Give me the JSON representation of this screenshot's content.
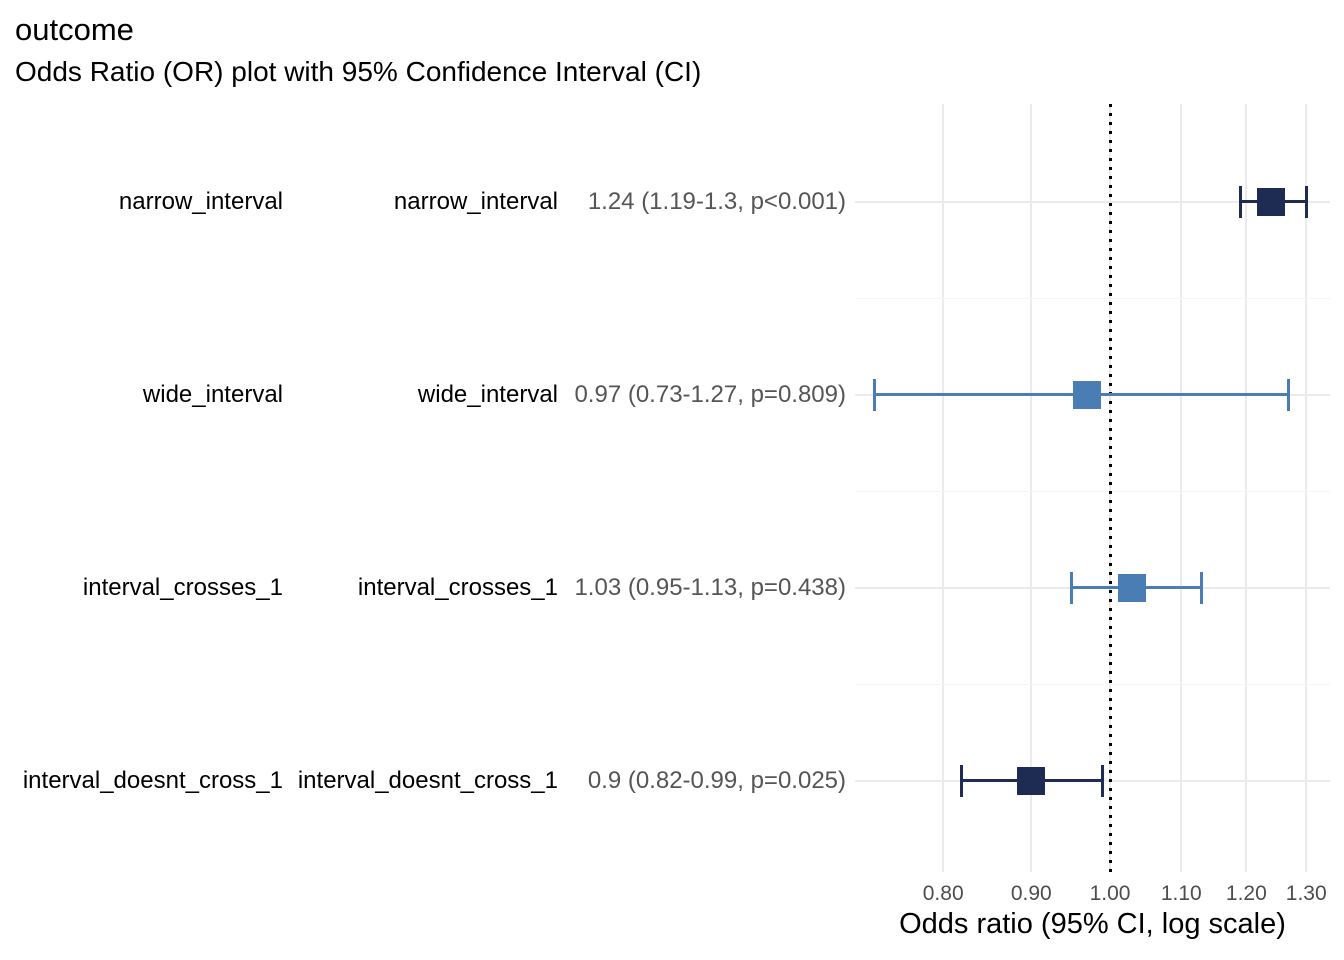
{
  "header": {
    "title": "outcome",
    "subtitle": "Odds Ratio (OR) plot with 95% Confidence Interval (CI)"
  },
  "chart_data": {
    "type": "scatter",
    "subtype": "forest-plot-odds-ratio",
    "title": "outcome",
    "subtitle": "Odds Ratio (OR) plot with 95% Confidence Interval (CI)",
    "xlabel": "Odds ratio (95% CI, log scale)",
    "x_scale": "log10",
    "xlim": [
      0.711,
      1.342
    ],
    "x_ticks": [
      0.8,
      0.9,
      1.0,
      1.1,
      1.2,
      1.3
    ],
    "x_tick_labels": [
      "0.80",
      "0.90",
      "1.00",
      "1.10",
      "1.20",
      "1.30"
    ],
    "reference_line": 1.0,
    "grid": "major-only",
    "legend_position": "none",
    "rows": [
      {
        "label": "narrow_interval",
        "group": "narrow_interval",
        "estimate_text": "1.24 (1.19-1.3, p<0.001)",
        "or": 1.24,
        "ci_low": 1.19,
        "ci_high": 1.3,
        "p": "<0.001",
        "significant": true
      },
      {
        "label": "wide_interval",
        "group": "wide_interval",
        "estimate_text": "0.97 (0.73-1.27, p=0.809)",
        "or": 0.97,
        "ci_low": 0.73,
        "ci_high": 1.27,
        "p": "=0.809",
        "significant": false
      },
      {
        "label": "interval_crosses_1",
        "group": "interval_crosses_1",
        "estimate_text": "1.03 (0.95-1.13, p=0.438)",
        "or": 1.03,
        "ci_low": 0.95,
        "ci_high": 1.13,
        "p": "=0.438",
        "significant": false
      },
      {
        "label": "interval_doesnt_cross_1",
        "group": "interval_doesnt_cross_1",
        "estimate_text": "0.9 (0.82-0.99, p=0.025)",
        "or": 0.9,
        "ci_low": 0.82,
        "ci_high": 0.99,
        "p": "=0.025",
        "significant": true
      }
    ],
    "colors": {
      "significant": "#1e2b52",
      "not_significant": "#4a7db3",
      "gridline": "#ebebeb",
      "minor_gridline": "#f5f5f5",
      "reference_line": "#000000",
      "tick_label": "#4d4d4d",
      "estimate_text": "#555555",
      "label_text": "#000000",
      "background": "#ffffff"
    }
  }
}
